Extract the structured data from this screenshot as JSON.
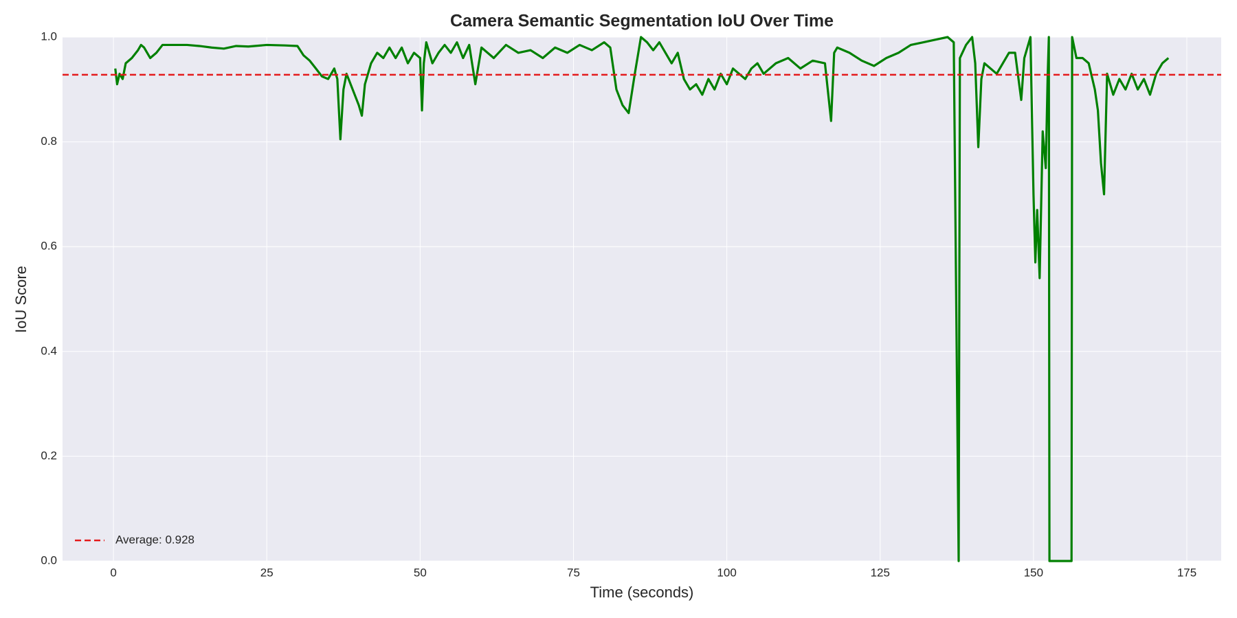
{
  "chart_data": {
    "type": "line",
    "title": "Camera Semantic Segmentation IoU Over Time",
    "xlabel": "Time (seconds)",
    "ylabel": "IoU Score",
    "x": [
      0.3,
      0.6,
      1,
      1.5,
      2,
      3,
      4,
      4.5,
      5,
      6,
      7,
      8,
      10,
      12,
      14,
      16,
      18,
      20,
      22,
      25,
      28,
      30,
      31,
      32,
      33,
      34,
      35,
      36,
      36.5,
      37,
      37.5,
      38,
      39,
      40,
      40.5,
      41,
      42,
      43,
      44,
      45,
      46,
      47,
      48,
      49,
      50,
      50.3,
      50.6,
      51,
      52,
      53,
      54,
      55,
      56,
      57,
      58,
      59,
      60,
      62,
      64,
      66,
      68,
      70,
      72,
      74,
      76,
      78,
      80,
      81,
      82,
      83,
      84,
      85,
      86,
      87,
      88,
      89,
      90,
      91,
      92,
      93,
      94,
      95,
      96,
      97,
      98,
      99,
      100,
      101,
      102,
      103,
      104,
      105,
      106,
      108,
      110,
      112,
      114,
      116,
      117,
      117.5,
      118,
      120,
      122,
      124,
      126,
      128,
      130,
      132,
      134,
      136,
      137,
      137.8,
      138,
      139,
      140,
      140.5,
      141,
      141.5,
      142,
      144,
      146,
      147,
      148,
      148.5,
      149.5,
      150,
      150.3,
      150.6,
      151,
      151.5,
      152,
      152.3,
      152.5,
      152.6,
      155,
      156.2,
      156.3,
      157,
      158,
      159,
      160,
      160.5,
      161,
      161.5,
      162,
      163,
      164,
      165,
      166,
      167,
      168,
      169,
      170,
      171,
      172
    ],
    "series": [
      {
        "color": "#008000",
        "values": [
          0.94,
          0.91,
          0.93,
          0.92,
          0.95,
          0.96,
          0.975,
          0.985,
          0.98,
          0.96,
          0.97,
          0.985,
          0.985,
          0.985,
          0.983,
          0.98,
          0.978,
          0.983,
          0.982,
          0.985,
          0.984,
          0.983,
          0.965,
          0.955,
          0.94,
          0.925,
          0.92,
          0.94,
          0.92,
          0.805,
          0.9,
          0.93,
          0.9,
          0.87,
          0.85,
          0.91,
          0.95,
          0.97,
          0.96,
          0.98,
          0.96,
          0.98,
          0.95,
          0.97,
          0.96,
          0.86,
          0.95,
          0.99,
          0.95,
          0.97,
          0.985,
          0.97,
          0.99,
          0.96,
          0.985,
          0.91,
          0.98,
          0.96,
          0.985,
          0.97,
          0.975,
          0.96,
          0.98,
          0.97,
          0.985,
          0.975,
          0.99,
          0.98,
          0.9,
          0.87,
          0.855,
          0.93,
          1.0,
          0.99,
          0.975,
          0.99,
          0.97,
          0.95,
          0.97,
          0.92,
          0.9,
          0.91,
          0.89,
          0.92,
          0.9,
          0.93,
          0.91,
          0.94,
          0.93,
          0.92,
          0.94,
          0.95,
          0.93,
          0.95,
          0.96,
          0.94,
          0.955,
          0.95,
          0.84,
          0.97,
          0.98,
          0.97,
          0.955,
          0.945,
          0.96,
          0.97,
          0.985,
          0.99,
          0.995,
          1.0,
          0.99,
          0.0,
          0.96,
          0.985,
          1.0,
          0.95,
          0.79,
          0.92,
          0.95,
          0.93,
          0.97,
          0.97,
          0.88,
          0.96,
          1.0,
          0.7,
          0.57,
          0.67,
          0.54,
          0.82,
          0.75,
          0.92,
          1.0,
          0.0,
          0.0,
          0.0,
          1.0,
          0.96,
          0.96,
          0.95,
          0.9,
          0.86,
          0.76,
          0.7,
          0.93,
          0.89,
          0.92,
          0.9,
          0.93,
          0.9,
          0.92,
          0.89,
          0.93,
          0.95,
          0.96
        ]
      }
    ],
    "reference_line": {
      "value": 0.928,
      "label": "Average: 0.928",
      "color": "#e41a1c"
    },
    "xlim": [
      -8.3,
      180.6
    ],
    "xticks": [
      0,
      25,
      50,
      75,
      100,
      125,
      150,
      175
    ],
    "ylim": [
      0,
      1
    ],
    "yticks": [
      {
        "value": 0,
        "label": "0.0"
      },
      {
        "value": 0.2,
        "label": "0.2"
      },
      {
        "value": 0.4,
        "label": "0.4"
      },
      {
        "value": 0.6,
        "label": "0.6"
      },
      {
        "value": 0.8,
        "label": "0.8"
      },
      {
        "value": 1,
        "label": "1.0"
      }
    ],
    "grid": true,
    "legend_loc": "lower left"
  }
}
